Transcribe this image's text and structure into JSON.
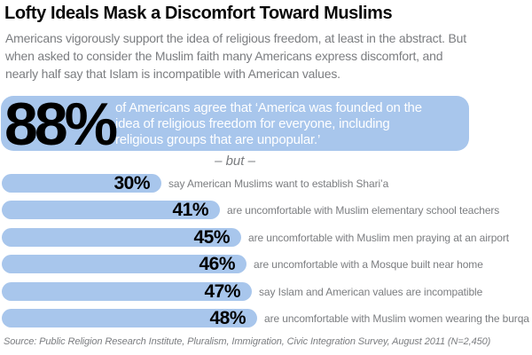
{
  "title": "Lofty Ideals Mask a Discomfort Toward Muslims",
  "subtitle_lines": [
    "Americans vigorously support the idea of religious freedom, at least in the abstract. But",
    "when asked to consider the Muslim faith many Americans express discomfort, and",
    "nearly half say that Islam is incompatible with American values."
  ],
  "hero": {
    "value": 88,
    "pct_label": "88%",
    "quote_lines": [
      "of Americans agree that ‘America was founded on the",
      "idea of religious freedom for everyone, including",
      "religious groups that are unpopular.’"
    ]
  },
  "divider_label": "– but –",
  "chart_data": {
    "type": "bar",
    "orientation": "horizontal",
    "title": "Lofty Ideals Mask a Discomfort Toward Muslims",
    "unit": "% of Americans agreeing",
    "xlim": [
      0,
      100
    ],
    "grid": false,
    "legend": false,
    "hero_stat": {
      "value": 88,
      "text": "of Americans agree that ‘America was founded on the idea of religious freedom for everyone, including religious groups that are unpopular.’"
    },
    "categories": [
      "say American Muslims want to establish Shari’a",
      "are uncomfortable with Muslim elementary school teachers",
      "are uncomfortable with Muslim men praying at an airport",
      "are uncomfortable with a Mosque built near home",
      "say Islam and American values are incompatible",
      "are uncomfortable with Muslim women wearing the burqa"
    ],
    "values": [
      30,
      41,
      45,
      46,
      47,
      48
    ],
    "rows": [
      {
        "value": 30,
        "label": "30%",
        "desc": "say American Muslims want to establish Shari’a"
      },
      {
        "value": 41,
        "label": "41%",
        "desc": "are uncomfortable with Muslim elementary school teachers"
      },
      {
        "value": 45,
        "label": "45%",
        "desc": "are uncomfortable with Muslim men praying at an airport"
      },
      {
        "value": 46,
        "label": "46%",
        "desc": "are uncomfortable with a Mosque built near home"
      },
      {
        "value": 47,
        "label": "47%",
        "desc": "say Islam and American values are incompatible"
      },
      {
        "value": 48,
        "label": "48%",
        "desc": "are uncomfortable with Muslim women wearing the burqa"
      }
    ]
  },
  "source": "Source: Public Religion Research Institute, Pluralism, Immigration, Civic Integration Survey,  August 2011 (N=2,450)",
  "colors": {
    "bar_blue": "#a8c6ec",
    "text_gray": "#7b7d80",
    "title_color": "#0a0a0a",
    "pct_color": "#000000",
    "hero_text_color": "#ffffff"
  }
}
